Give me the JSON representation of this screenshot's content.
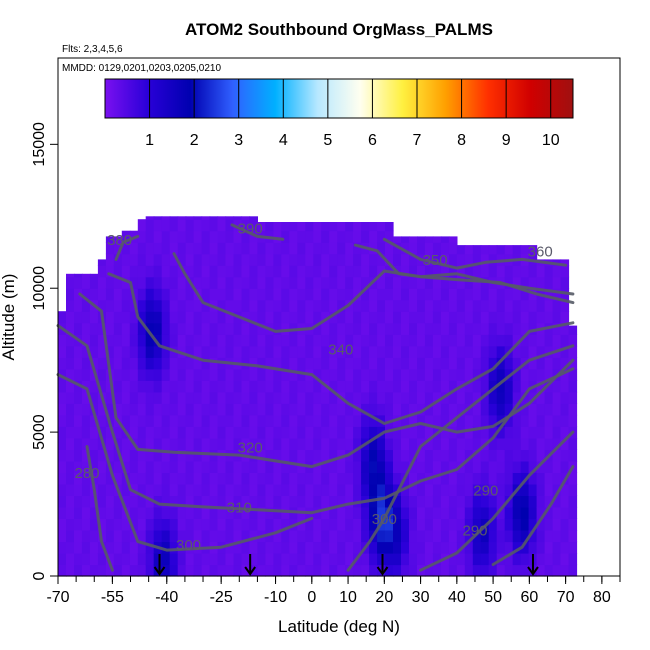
{
  "chart_data": {
    "type": "heatmap",
    "title": "ATOM2 Southbound OrgMass_PALMS",
    "subtitle_flights": "Flts: 2,3,4,5,6",
    "subtitle_dates": "MMDD: 0129,0201,0203,0205,0210",
    "xlabel": "Latitude (deg N)",
    "ylabel": "Altitude (m)",
    "xlim": [
      -70,
      85
    ],
    "ylim": [
      0,
      18000
    ],
    "x_ticks": [
      -70,
      -55,
      -40,
      -25,
      -10,
      0,
      10,
      20,
      30,
      40,
      50,
      60,
      70,
      80
    ],
    "y_ticks": [
      0,
      5000,
      10000,
      15000
    ],
    "colorbar": {
      "ticks": [
        1,
        2,
        3,
        4,
        5,
        6,
        7,
        8,
        9,
        10
      ],
      "range": [
        0,
        10.5
      ],
      "colors": [
        "#7a10f0",
        "#2a00d8",
        "#0000b0",
        "#3060ff",
        "#00b0ff",
        "#b8e8ff",
        "#fffff0",
        "#fff040",
        "#ffa000",
        "#ff3000",
        "#d00000",
        "#a01010"
      ]
    },
    "field": {
      "background_value": 0.3,
      "background_color": "#7b1ff2",
      "hotspots": [
        {
          "lat": -44,
          "alt": 8500,
          "value": 1.6
        },
        {
          "lat": -41,
          "alt": 500,
          "value": 1.4
        },
        {
          "lat": 17,
          "alt": 4000,
          "value": 1.5
        },
        {
          "lat": 19,
          "alt": 2000,
          "value": 1.8
        },
        {
          "lat": 23,
          "alt": 1500,
          "value": 1.2
        },
        {
          "lat": 47,
          "alt": 1500,
          "value": 1.3
        },
        {
          "lat": 52,
          "alt": 6500,
          "value": 1.4
        },
        {
          "lat": 58,
          "alt": 2200,
          "value": 1.7
        }
      ]
    },
    "contours": [
      {
        "label": "280",
        "points": [
          [
            -62,
            4500
          ],
          [
            -60,
            3000
          ],
          [
            -58,
            1200
          ],
          [
            -55,
            200
          ]
        ]
      },
      {
        "label": "290",
        "points": [
          [
            30,
            200
          ],
          [
            40,
            800
          ],
          [
            50,
            2000
          ],
          [
            60,
            3500
          ],
          [
            72,
            5000
          ]
        ]
      },
      {
        "label": "290",
        "points": [
          [
            50,
            400
          ],
          [
            58,
            1000
          ],
          [
            66,
            2500
          ],
          [
            72,
            3800
          ]
        ]
      },
      {
        "label": "300",
        "points": [
          [
            -70,
            7000
          ],
          [
            -62,
            6500
          ],
          [
            -55,
            3500
          ],
          [
            -48,
            1200
          ],
          [
            -40,
            900
          ],
          [
            -25,
            1000
          ],
          [
            -10,
            1500
          ],
          [
            0,
            2000
          ]
        ]
      },
      {
        "label": "300",
        "points": [
          [
            10,
            200
          ],
          [
            16,
            1200
          ],
          [
            20,
            2000
          ],
          [
            26,
            3500
          ],
          [
            30,
            4500
          ],
          [
            40,
            5500
          ],
          [
            50,
            6500
          ],
          [
            60,
            7500
          ],
          [
            72,
            8000
          ]
        ]
      },
      {
        "label": "310",
        "points": [
          [
            -70,
            8700
          ],
          [
            -62,
            8000
          ],
          [
            -55,
            5000
          ],
          [
            -50,
            3000
          ],
          [
            -42,
            2500
          ],
          [
            -30,
            2400
          ],
          [
            -15,
            2300
          ],
          [
            0,
            2200
          ],
          [
            10,
            2500
          ],
          [
            20,
            2700
          ],
          [
            30,
            3300
          ],
          [
            40,
            3700
          ],
          [
            50,
            4800
          ],
          [
            60,
            6500
          ],
          [
            72,
            7200
          ]
        ]
      },
      {
        "label": "320",
        "points": [
          [
            -64,
            9800
          ],
          [
            -58,
            9200
          ],
          [
            -54,
            5500
          ],
          [
            -48,
            4400
          ],
          [
            -38,
            4300
          ],
          [
            -20,
            4200
          ],
          [
            -10,
            4000
          ],
          [
            0,
            3800
          ],
          [
            10,
            4200
          ],
          [
            20,
            5000
          ],
          [
            30,
            5300
          ],
          [
            40,
            5000
          ],
          [
            50,
            5200
          ],
          [
            60,
            6000
          ],
          [
            72,
            7500
          ]
        ]
      },
      {
        "label": "340",
        "points": [
          [
            -56,
            10500
          ],
          [
            -50,
            10200
          ],
          [
            -48,
            9000
          ],
          [
            -42,
            8000
          ],
          [
            -30,
            7500
          ],
          [
            -15,
            7300
          ],
          [
            0,
            7000
          ],
          [
            10,
            6000
          ],
          [
            20,
            5300
          ],
          [
            30,
            5700
          ],
          [
            40,
            6500
          ],
          [
            50,
            7200
          ],
          [
            60,
            8500
          ],
          [
            72,
            8800
          ]
        ]
      },
      {
        "label": "350",
        "points": [
          [
            -38,
            11200
          ],
          [
            -35,
            10500
          ],
          [
            -30,
            9500
          ],
          [
            -20,
            9000
          ],
          [
            -10,
            8500
          ],
          [
            0,
            8600
          ],
          [
            10,
            9400
          ],
          [
            20,
            10600
          ],
          [
            30,
            10400
          ],
          [
            40,
            10300
          ],
          [
            52,
            10200
          ],
          [
            62,
            9800
          ],
          [
            72,
            9500
          ]
        ]
      },
      {
        "label": "350",
        "points": [
          [
            12,
            11500
          ],
          [
            18,
            11300
          ],
          [
            24,
            10500
          ],
          [
            30,
            10400
          ],
          [
            40,
            10500
          ],
          [
            50,
            10200
          ],
          [
            60,
            10000
          ],
          [
            72,
            9800
          ]
        ]
      },
      {
        "label": "360",
        "points": [
          [
            20,
            11700
          ],
          [
            30,
            11000
          ],
          [
            40,
            10700
          ],
          [
            48,
            10900
          ],
          [
            58,
            11000
          ],
          [
            70,
            10800
          ]
        ]
      },
      {
        "label": "380",
        "points": [
          [
            -54,
            11000
          ],
          [
            -52,
            11600
          ],
          [
            -48,
            11800
          ]
        ]
      },
      {
        "label": "390",
        "points": [
          [
            -22,
            12200
          ],
          [
            -15,
            11800
          ],
          [
            -8,
            11700
          ]
        ]
      }
    ],
    "contour_labels": [
      {
        "text": "280",
        "lat": -62,
        "alt": 3400
      },
      {
        "text": "290",
        "lat": 48,
        "alt": 2800
      },
      {
        "text": "290",
        "lat": 45,
        "alt": 1400
      },
      {
        "text": "300",
        "lat": -34,
        "alt": 900
      },
      {
        "text": "300",
        "lat": 20,
        "alt": 1800
      },
      {
        "text": "310",
        "lat": -20,
        "alt": 2200
      },
      {
        "text": "320",
        "lat": -17,
        "alt": 4300
      },
      {
        "text": "340",
        "lat": 8,
        "alt": 7700
      },
      {
        "text": "350",
        "lat": 34,
        "alt": 10800
      },
      {
        "text": "360",
        "lat": 63,
        "alt": 11100
      },
      {
        "text": "380",
        "lat": -53,
        "alt": 11500
      },
      {
        "text": "390",
        "lat": -17,
        "alt": 11900
      }
    ],
    "arrows_lat": [
      -42,
      -17,
      19.5,
      61
    ]
  }
}
